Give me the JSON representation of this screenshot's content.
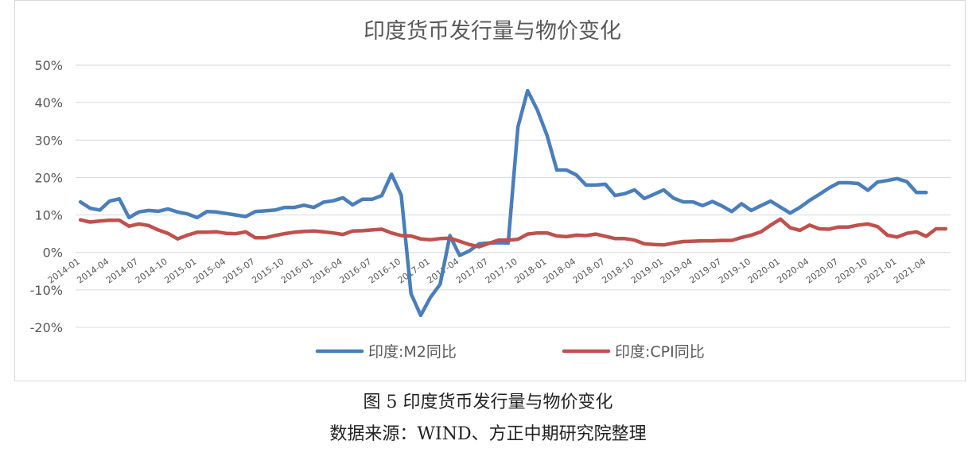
{
  "caption": {
    "figure": "图 5 印度货币发行量与物价变化",
    "source": "数据来源：WIND、方正中期研究院整理"
  },
  "chart_data": {
    "type": "line",
    "title": "印度货币发行量与物价变化",
    "xlabel": "",
    "ylabel": "",
    "ylim": [
      -0.2,
      0.5
    ],
    "yticks": [
      -0.2,
      -0.1,
      0,
      0.1,
      0.2,
      0.3,
      0.4,
      0.5
    ],
    "ytick_labels": [
      "-20%",
      "-10%",
      "0%",
      "10%",
      "20%",
      "30%",
      "40%",
      "50%"
    ],
    "grid": "horizontal",
    "legend_position": "bottom",
    "x": [
      "2014-01",
      "2014-02",
      "2014-03",
      "2014-04",
      "2014-05",
      "2014-06",
      "2014-07",
      "2014-08",
      "2014-09",
      "2014-10",
      "2014-11",
      "2014-12",
      "2015-01",
      "2015-02",
      "2015-03",
      "2015-04",
      "2015-05",
      "2015-06",
      "2015-07",
      "2015-08",
      "2015-09",
      "2015-10",
      "2015-11",
      "2015-12",
      "2016-01",
      "2016-02",
      "2016-03",
      "2016-04",
      "2016-05",
      "2016-06",
      "2016-07",
      "2016-08",
      "2016-09",
      "2016-10",
      "2016-11",
      "2016-12",
      "2017-01",
      "2017-02",
      "2017-03",
      "2017-04",
      "2017-05",
      "2017-06",
      "2017-07",
      "2017-08",
      "2017-09",
      "2017-10",
      "2017-11",
      "2017-12",
      "2018-01",
      "2018-02",
      "2018-03",
      "2018-04",
      "2018-05",
      "2018-06",
      "2018-07",
      "2018-08",
      "2018-09",
      "2018-10",
      "2018-11",
      "2018-12",
      "2019-01",
      "2019-02",
      "2019-03",
      "2019-04",
      "2019-05",
      "2019-06",
      "2019-07",
      "2019-08",
      "2019-09",
      "2019-10",
      "2019-11",
      "2019-12",
      "2020-01",
      "2020-02",
      "2020-03",
      "2020-04",
      "2020-05",
      "2020-06",
      "2020-07",
      "2020-08",
      "2020-09",
      "2020-10",
      "2020-11",
      "2020-12",
      "2021-01",
      "2021-02",
      "2021-03",
      "2021-04",
      "2021-05",
      "2021-06"
    ],
    "x_tick_labels": [
      "2014-01",
      "2014-04",
      "2014-07",
      "2014-10",
      "2015-01",
      "2015-04",
      "2015-07",
      "2015-10",
      "2016-01",
      "2016-04",
      "2016-07",
      "2016-10",
      "2017-01",
      "2017-04",
      "2017-07",
      "2017-10",
      "2018-01",
      "2018-04",
      "2018-07",
      "2018-10",
      "2019-01",
      "2019-04",
      "2019-07",
      "2019-10",
      "2020-01",
      "2020-04",
      "2020-07",
      "2020-10",
      "2021-01",
      "2021-04"
    ],
    "series": [
      {
        "name": "印度:M2同比",
        "color": "#4a7ebb",
        "values": [
          0.135,
          0.118,
          0.113,
          0.137,
          0.143,
          0.093,
          0.108,
          0.112,
          0.11,
          0.116,
          0.108,
          0.103,
          0.093,
          0.109,
          0.108,
          0.104,
          0.1,
          0.096,
          0.109,
          0.111,
          0.113,
          0.12,
          0.12,
          0.126,
          0.12,
          0.134,
          0.138,
          0.146,
          0.127,
          0.142,
          0.142,
          0.152,
          0.209,
          0.153,
          -0.11,
          -0.168,
          -0.12,
          -0.085,
          0.045,
          -0.008,
          0.004,
          0.023,
          0.025,
          0.026,
          0.025,
          0.335,
          0.432,
          0.38,
          0.312,
          0.22,
          0.22,
          0.207,
          0.18,
          0.18,
          0.182,
          0.152,
          0.157,
          0.167,
          0.144,
          0.155,
          0.167,
          0.145,
          0.135,
          0.135,
          0.125,
          0.136,
          0.124,
          0.109,
          0.13,
          0.112,
          0.125,
          0.137,
          0.121,
          0.105,
          0.12,
          0.139,
          0.155,
          0.172,
          0.186,
          0.186,
          0.184,
          0.166,
          0.188,
          0.192,
          0.197,
          0.189,
          0.16,
          0.16,
          null,
          null
        ]
      },
      {
        "name": "印度:CPI同比",
        "color": "#c0504d",
        "values": [
          0.087,
          0.081,
          0.084,
          0.086,
          0.086,
          0.07,
          0.076,
          0.072,
          0.06,
          0.051,
          0.036,
          0.046,
          0.054,
          0.054,
          0.055,
          0.051,
          0.05,
          0.055,
          0.039,
          0.039,
          0.045,
          0.05,
          0.054,
          0.056,
          0.057,
          0.055,
          0.052,
          0.048,
          0.057,
          0.058,
          0.06,
          0.062,
          0.052,
          0.045,
          0.044,
          0.036,
          0.034,
          0.037,
          0.038,
          0.03,
          0.021,
          0.015,
          0.024,
          0.033,
          0.033,
          0.035,
          0.049,
          0.052,
          0.052,
          0.044,
          0.042,
          0.046,
          0.045,
          0.049,
          0.043,
          0.037,
          0.037,
          0.033,
          0.023,
          0.021,
          0.02,
          0.025,
          0.029,
          0.03,
          0.031,
          0.031,
          0.032,
          0.032,
          0.04,
          0.046,
          0.055,
          0.073,
          0.089,
          0.066,
          0.059,
          0.073,
          0.063,
          0.062,
          0.068,
          0.068,
          0.073,
          0.076,
          0.069,
          0.046,
          0.041,
          0.051,
          0.055,
          0.043,
          0.063,
          0.063
        ]
      }
    ]
  }
}
